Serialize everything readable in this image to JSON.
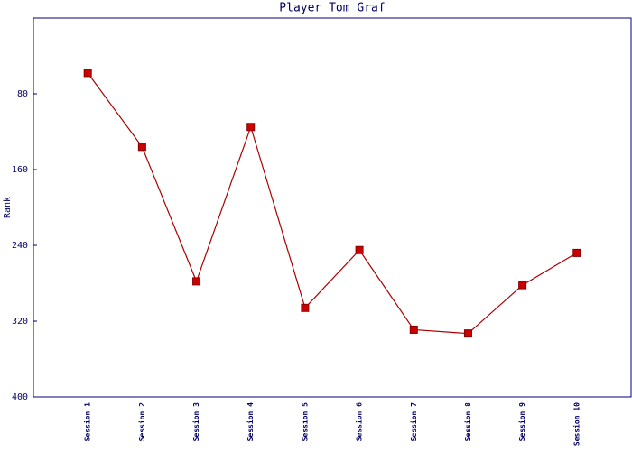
{
  "chart_data": {
    "type": "line",
    "title": "Player Tom Graf",
    "y_label": "Rank",
    "categories": [
      "Session 1",
      "Session 2",
      "Session 3",
      "Session 4",
      "Session 5",
      "Session 6",
      "Session 7",
      "Session 8",
      "Session 9",
      "Session 10"
    ],
    "series": [
      {
        "name": "Rank",
        "color": "#aa0000",
        "values": [
          58,
          136,
          278,
          115,
          306,
          245,
          329,
          333,
          282,
          248
        ]
      }
    ],
    "ylim": [
      0,
      400
    ],
    "yticks": [
      80,
      160,
      240,
      320,
      400
    ],
    "y_inverted": true,
    "grid": false
  }
}
